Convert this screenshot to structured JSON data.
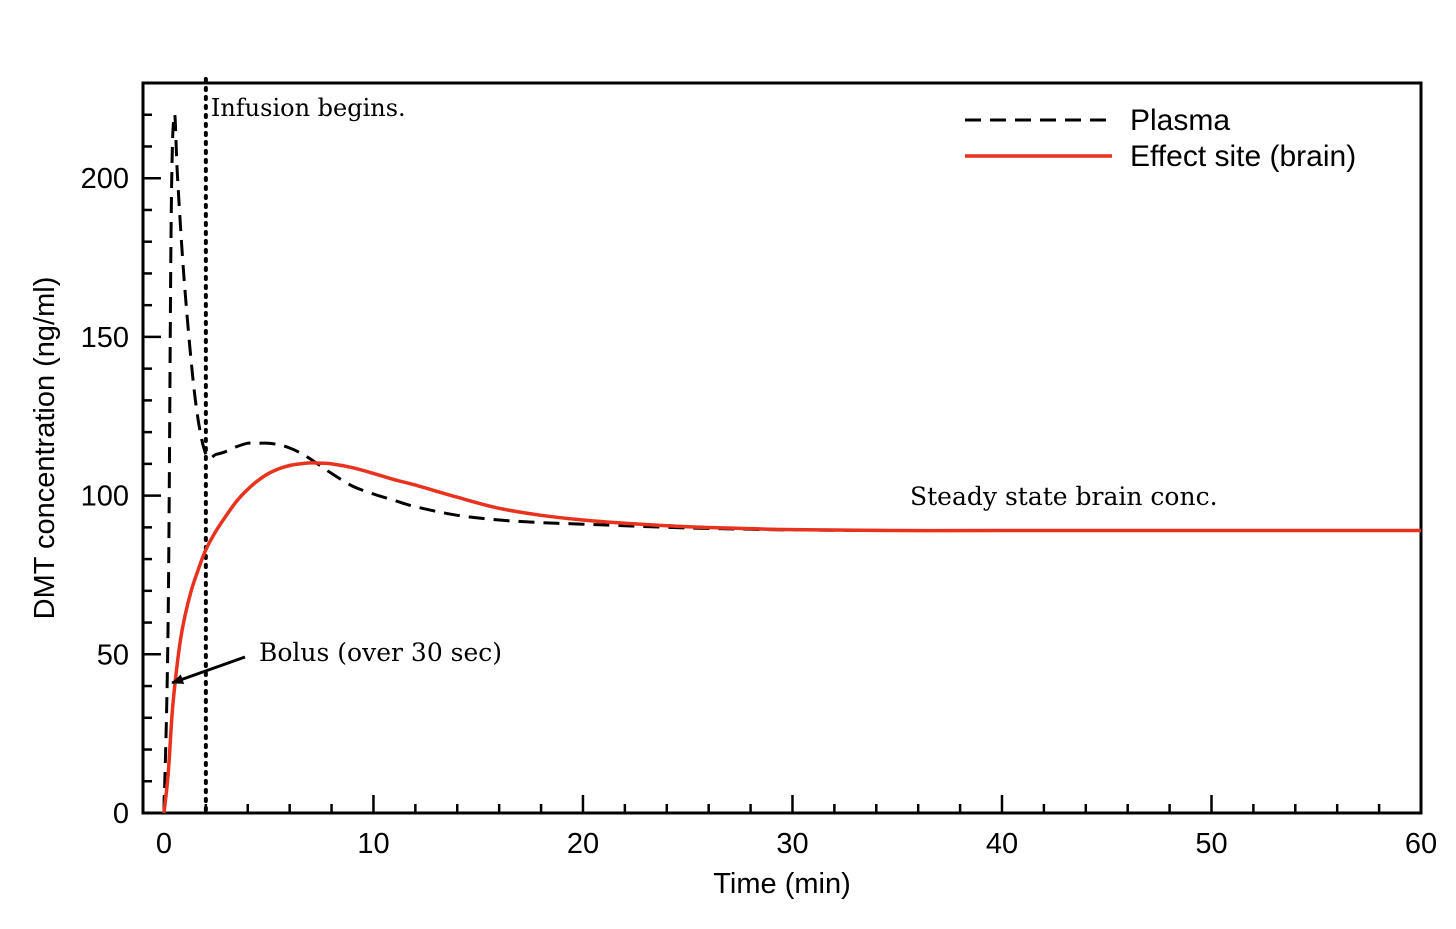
{
  "chart_data": {
    "type": "line",
    "title": "",
    "xlabel": "Time (min)",
    "ylabel": "DMT concentration (ng/ml)",
    "xlim": [
      -1,
      60
    ],
    "ylim": [
      0,
      230
    ],
    "xticks": [
      0,
      10,
      20,
      30,
      40,
      50,
      60
    ],
    "yticks": [
      0,
      50,
      100,
      150,
      200
    ],
    "grid": false,
    "legend_position": "top-right",
    "series": [
      {
        "name": "Plasma",
        "style": "dashed",
        "color": "#000000",
        "x": [
          0,
          0.2,
          0.35,
          0.5,
          0.65,
          1.0,
          1.5,
          2.0,
          2.5,
          3.0,
          3.5,
          4.0,
          4.5,
          5.0,
          5.5,
          6.0,
          6.5,
          7.0,
          8.0,
          9.0,
          10.0,
          11.0,
          12.0,
          14.0,
          16.0,
          18.0,
          20.0,
          22.0,
          25.0,
          28.0,
          30.0,
          35.0,
          40.0,
          50.0,
          60.0
        ],
        "y": [
          0,
          60,
          190,
          220,
          200,
          165,
          130,
          113,
          113,
          114,
          115.5,
          116.5,
          116.5,
          116.5,
          116,
          115,
          113.5,
          111.5,
          107,
          103,
          100.5,
          98.5,
          96.5,
          93.8,
          92.3,
          91.5,
          91,
          90.5,
          89.8,
          89.4,
          89.2,
          89,
          89,
          89,
          89
        ]
      },
      {
        "name": "Effect site (brain)",
        "style": "solid",
        "color": "#e8321e",
        "x": [
          0,
          0.2,
          0.4,
          0.6,
          0.8,
          1.0,
          1.3,
          1.6,
          2.0,
          2.5,
          3.0,
          3.5,
          4.0,
          4.5,
          5.0,
          5.5,
          6.0,
          6.5,
          7.0,
          7.5,
          8.0,
          9.0,
          10.0,
          11.0,
          12.0,
          14.0,
          16.0,
          18.0,
          20.0,
          22.0,
          25.0,
          28.0,
          30.0,
          35.0,
          40.0,
          50.0,
          60.0
        ],
        "y": [
          0,
          12,
          32,
          45,
          55,
          62,
          70,
          76,
          83,
          89,
          94,
          98.5,
          102,
          104.8,
          107,
          108.5,
          109.5,
          110,
          110.3,
          110.2,
          110,
          108.8,
          107,
          105,
          103.3,
          99.5,
          96,
          93.8,
          92.3,
          91.3,
          90.2,
          89.6,
          89.3,
          89,
          89,
          89,
          89
        ]
      }
    ],
    "vertical_lines": [
      {
        "x": 2,
        "style": "dotted",
        "label": "Infusion begins."
      }
    ],
    "annotations": [
      {
        "text": "Bolus (over 30 sec)",
        "arrow_to": [
          0.2,
          41
        ],
        "text_at": [
          4.5,
          51
        ]
      },
      {
        "text": "Steady state brain conc.",
        "text_at": [
          35,
          99
        ]
      }
    ]
  }
}
